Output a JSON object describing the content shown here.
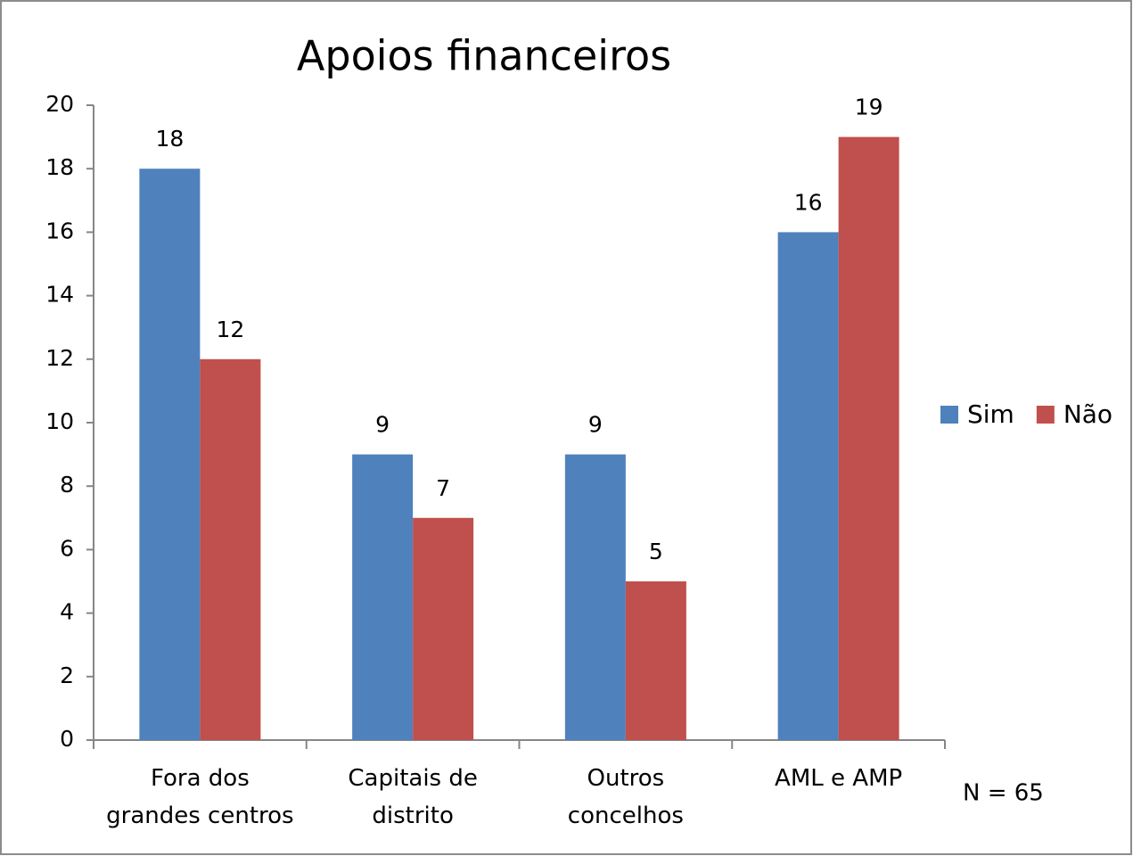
{
  "chart_data": {
    "type": "bar",
    "title": "Apoios financeiros",
    "categories": [
      "Fora dos\ngrandes centros",
      "Capitais de\ndistrito",
      "Outros\nconcelhos",
      "AML e AMP"
    ],
    "series": [
      {
        "name": "Sim",
        "color": "#4f81bd",
        "values": [
          18,
          9,
          9,
          16
        ]
      },
      {
        "name": "Não",
        "color": "#c0504d",
        "values": [
          12,
          7,
          5,
          19
        ]
      }
    ],
    "ylim": [
      0,
      20
    ],
    "yticks": [
      0,
      2,
      4,
      6,
      8,
      10,
      12,
      14,
      16,
      18,
      20
    ],
    "legend": "right",
    "annotation": "N = 65"
  }
}
